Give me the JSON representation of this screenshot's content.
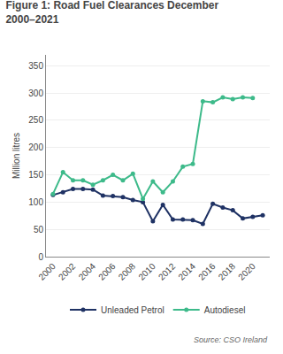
{
  "chart_data": {
    "type": "line",
    "title": "Figure 1: Road Fuel Clearances December\n2000–2021",
    "ylabel": "Million litres",
    "annotations": [
      "Source: CSO Ireland"
    ],
    "x": [
      2000,
      2001,
      2002,
      2003,
      2004,
      2005,
      2006,
      2007,
      2008,
      2009,
      2010,
      2011,
      2012,
      2013,
      2014,
      2015,
      2016,
      2017,
      2018,
      2019,
      2020,
      2021
    ],
    "series": [
      {
        "name": "Unleaded Petrol",
        "color": "#1f3264",
        "values": [
          113,
          118,
          124,
          124,
          123,
          112,
          111,
          109,
          104,
          100,
          65,
          95,
          68,
          68,
          67,
          60,
          97,
          90,
          85,
          70,
          73,
          76
        ]
      },
      {
        "name": "Autodiesel",
        "color": "#3dba8a",
        "values": [
          115,
          155,
          140,
          140,
          132,
          140,
          150,
          140,
          152,
          106,
          138,
          118,
          138,
          165,
          170,
          285,
          283,
          292,
          289,
          292,
          291,
          null
        ]
      }
    ],
    "xlim": [
      1999.3,
      2021.7
    ],
    "ylim": [
      0,
      370
    ],
    "xticks": [
      2000,
      2002,
      2004,
      2006,
      2008,
      2010,
      2012,
      2014,
      2016,
      2018,
      2020
    ],
    "yticks": [
      0,
      50,
      100,
      150,
      200,
      250,
      300,
      350
    ],
    "grid": "y",
    "legend": "bottom",
    "marker": "circle"
  }
}
